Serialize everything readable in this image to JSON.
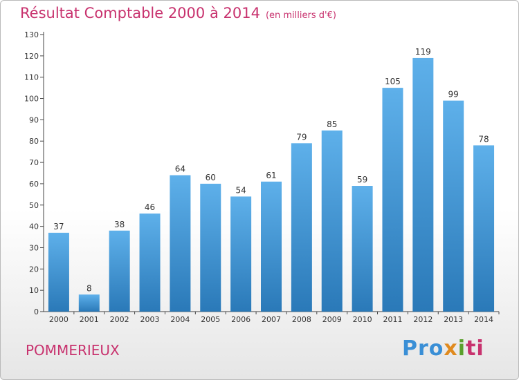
{
  "chart_data": {
    "type": "bar",
    "title": "Résultat Comptable 2000 à 2014",
    "subtitle": "(en milliers d'€)",
    "categories": [
      "2000",
      "2001",
      "2002",
      "2003",
      "2004",
      "2005",
      "2006",
      "2007",
      "2008",
      "2009",
      "2010",
      "2011",
      "2012",
      "2013",
      "2014"
    ],
    "values": [
      37,
      8,
      38,
      46,
      64,
      60,
      54,
      61,
      79,
      85,
      59,
      105,
      119,
      99,
      78
    ],
    "ylim": [
      0,
      130
    ],
    "yticks": [
      0,
      10,
      20,
      30,
      40,
      50,
      60,
      70,
      80,
      90,
      100,
      110,
      120,
      130
    ],
    "grid": false,
    "bar_color_top": "#5eb0ea",
    "bar_color_bottom": "#2a79b8"
  },
  "footer": {
    "commune": "POMMERIEUX",
    "logo": {
      "p1": "Pro",
      "p2": "x",
      "p3": "i",
      "p4": "ti"
    }
  }
}
